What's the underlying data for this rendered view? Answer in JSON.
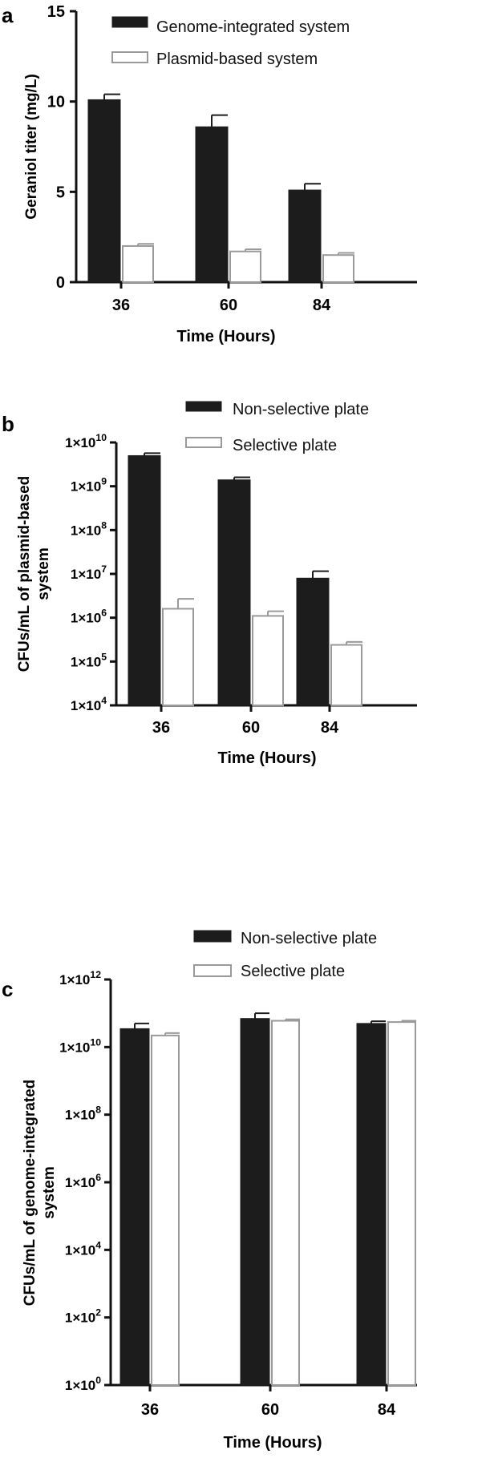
{
  "colors": {
    "filled": "#1c1c1c",
    "open_fill": "#ffffff",
    "open_stroke": "#9a9a9a",
    "axis": "#111111"
  },
  "chart_data": [
    {
      "panel": "a",
      "type": "bar",
      "ylabel": "Geraniol titer (mg/L)",
      "xlabel": "Time (Hours)",
      "categories": [
        "36",
        "60",
        "84"
      ],
      "yscale": "linear",
      "ylim": [
        0,
        15
      ],
      "yticks": [
        0,
        5,
        10,
        15
      ],
      "ytick_labels": [
        "0",
        "5",
        "10",
        "15"
      ],
      "legend_placement": "top-right",
      "series": [
        {
          "name": "Genome-integrated system",
          "style": "filled",
          "values": [
            10.1,
            8.6,
            5.1
          ],
          "errors": [
            0.3,
            0.65,
            0.35
          ]
        },
        {
          "name": "Plasmid-based system",
          "style": "open",
          "values": [
            2.0,
            1.7,
            1.5
          ],
          "errors": [
            0.12,
            0.12,
            0.12
          ]
        }
      ]
    },
    {
      "panel": "b",
      "type": "bar",
      "ylabel": "CFUs/mL of plasmid-based system",
      "xlabel": "Time (Hours)",
      "categories": [
        "36",
        "60",
        "84"
      ],
      "yscale": "log",
      "ylim": [
        10000,
        10000000000
      ],
      "ytick_exponents": [
        4,
        5,
        6,
        7,
        8,
        9,
        10
      ],
      "ytick_base": "1×10",
      "legend_placement": "top-right",
      "series": [
        {
          "name": "Non-selective plate",
          "style": "filled",
          "values": [
            5000000000,
            1400000000,
            8000000
          ],
          "upper": [
            5700000000,
            1600000000,
            11500000
          ]
        },
        {
          "name": "Selective plate",
          "style": "open",
          "values": [
            1600000,
            1100000,
            240000
          ],
          "upper": [
            2700000,
            1400000,
            280000
          ]
        }
      ]
    },
    {
      "panel": "c",
      "type": "bar",
      "ylabel": "CFUs/mL of genome-integrated system",
      "xlabel": "Time (Hours)",
      "categories": [
        "36",
        "60",
        "84"
      ],
      "yscale": "log",
      "ylim": [
        1,
        1000000000000
      ],
      "ytick_exponents": [
        0,
        2,
        4,
        6,
        8,
        10,
        12
      ],
      "ytick_base": "1×10",
      "legend_placement": "top-right",
      "series": [
        {
          "name": "Non-selective plate",
          "style": "filled",
          "values": [
            35000000000,
            70000000000,
            50000000000
          ],
          "upper": [
            50000000000,
            100000000000,
            58000000000
          ]
        },
        {
          "name": "Selective plate",
          "style": "open",
          "values": [
            22000000000,
            60000000000,
            55000000000
          ],
          "upper": [
            26000000000,
            66000000000,
            60000000000
          ]
        }
      ]
    }
  ]
}
